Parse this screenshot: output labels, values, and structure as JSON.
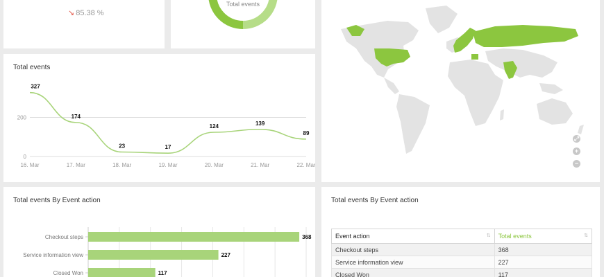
{
  "kpi": {
    "trend_arrow": "↘",
    "trend_value": "85.38 %"
  },
  "donut": {
    "label": "Total events"
  },
  "line_chart": {
    "title": "Total events"
  },
  "map": {
    "controls": [
      "⤢",
      "+",
      "−"
    ],
    "highlight_color": "#8cc63f"
  },
  "bar_chart": {
    "title": "Total events By Event action"
  },
  "table": {
    "title": "Total events By Event action",
    "headers": [
      "Event action",
      "Total events"
    ],
    "rows": [
      [
        "Checkout steps",
        "368"
      ],
      [
        "Service information view",
        "227"
      ],
      [
        "Closed Won",
        "117"
      ]
    ]
  },
  "chart_data": [
    {
      "type": "line",
      "title": "Total events",
      "categories": [
        "16. Mar",
        "17. Mar",
        "18. Mar",
        "19. Mar",
        "20. Mar",
        "21. Mar",
        "22. Mar"
      ],
      "values": [
        327,
        174,
        23,
        17,
        124,
        139,
        89
      ],
      "yticks": [
        0,
        200
      ],
      "ylim": [
        0,
        340
      ],
      "color": "#a8d47a",
      "grid": true
    },
    {
      "type": "bar",
      "title": "Total events By Event action",
      "categories": [
        "Checkout steps",
        "Service information view",
        "Closed Won"
      ],
      "values": [
        368,
        227,
        117
      ],
      "xlim": [
        0,
        380
      ],
      "color": "#a8d47a",
      "grid": true
    }
  ]
}
